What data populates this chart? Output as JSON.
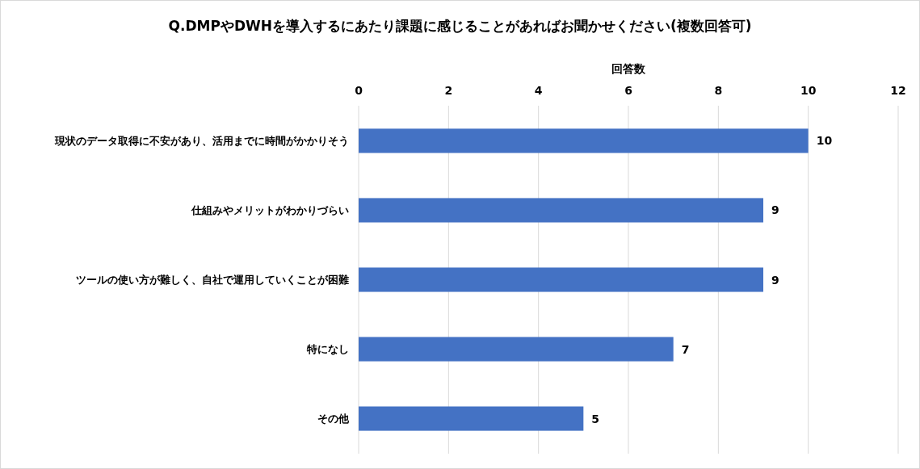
{
  "chart_data": {
    "type": "bar",
    "orientation": "horizontal",
    "title": "Q.DMPやDWHを導入するにあたり課題に感じることがあればお聞かせください(複数回答可)",
    "xlabel": "回答数",
    "categories": [
      "現状のデータ取得に不安があり、活用までに時間がかかりそう",
      "仕組みやメリットがわかりづらい",
      "ツールの使い方が難しく、自社で運用していくことが困難",
      "特になし",
      "その他"
    ],
    "values": [
      10,
      9,
      9,
      7,
      5
    ],
    "color": "#4472c4",
    "xlim": [
      0,
      12
    ],
    "xticks": [
      0,
      2,
      4,
      6,
      8,
      10,
      12
    ],
    "grid": "x",
    "data_labels": true
  }
}
